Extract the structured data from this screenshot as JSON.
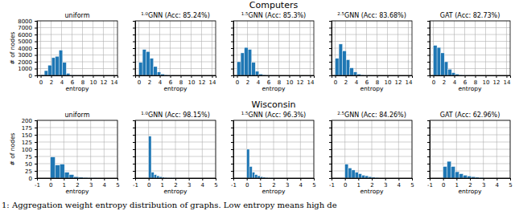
{
  "figure": {
    "row_titles": [
      "Computers",
      "Wisconsin"
    ],
    "caption": "1: Aggregation weight entropy distribution of graphs. Low entropy means high de"
  },
  "chart_data": [
    {
      "type": "histogram",
      "title": "uniform",
      "bins": [
        0,
        0.7,
        1.4,
        2.1,
        2.8,
        3.5,
        4.2,
        4.9,
        5.6,
        6.3,
        7.0
      ],
      "values": [
        100,
        700,
        1500,
        2600,
        2800,
        3700,
        1900,
        300,
        50,
        10
      ],
      "color": "#1f77b4",
      "xlim": [
        -0.7,
        14.7
      ],
      "xticks": [
        0,
        2,
        4,
        6,
        8,
        10,
        12,
        14
      ],
      "ylim": [
        0,
        8000
      ],
      "yticks": [
        0,
        1000,
        2000,
        3000,
        4000,
        5000,
        6000,
        7000,
        8000
      ],
      "xlabel": "entropy",
      "ylabel": "# of nodes",
      "grid": true
    },
    {
      "type": "histogram",
      "title": "1.0GNN (Acc: 85.24%)",
      "bins": [
        0,
        0.7,
        1.4,
        2.1,
        2.8,
        3.5,
        4.2,
        4.9,
        5.6,
        6.3,
        7.0
      ],
      "values": [
        1900,
        3800,
        3500,
        2500,
        1300,
        500,
        200,
        80,
        30,
        10
      ],
      "color": "#1f77b4",
      "xlim": [
        -0.7,
        14.7
      ],
      "xticks": [
        0,
        2,
        4,
        6,
        8,
        10,
        12,
        14
      ],
      "ylim": [
        0,
        8000
      ],
      "yticks": [
        0,
        1000,
        2000,
        3000,
        4000,
        5000,
        6000,
        7000,
        8000
      ],
      "xlabel": "entropy",
      "grid": true,
      "tick_labels": "x"
    },
    {
      "type": "histogram",
      "title": "1.5GNN (Acc: 85.3%)",
      "bins": [
        0,
        0.7,
        1.4,
        2.1,
        2.8,
        3.5,
        4.2,
        4.9,
        5.6,
        6.3,
        7.0
      ],
      "values": [
        2000,
        3300,
        4100,
        3800,
        1900,
        600,
        200,
        80,
        30,
        10
      ],
      "color": "#1f77b4",
      "xlim": [
        -0.7,
        14.7
      ],
      "xticks": [
        0,
        2,
        4,
        6,
        8,
        10,
        12,
        14
      ],
      "ylim": [
        0,
        8000
      ],
      "yticks": [
        0,
        1000,
        2000,
        3000,
        4000,
        5000,
        6000,
        7000,
        8000
      ],
      "xlabel": "entropy",
      "grid": true,
      "tick_labels": "x"
    },
    {
      "type": "histogram",
      "title": "2.5GNN (Acc: 83.68%)",
      "bins": [
        0,
        0.7,
        1.4,
        2.1,
        2.8,
        3.5,
        4.2,
        4.9,
        5.6,
        6.3,
        7.0
      ],
      "values": [
        2500,
        4600,
        3600,
        2300,
        1100,
        500,
        200,
        80,
        30,
        10
      ],
      "color": "#1f77b4",
      "xlim": [
        -0.7,
        14.7
      ],
      "xticks": [
        0,
        2,
        4,
        6,
        8,
        10,
        12,
        14
      ],
      "ylim": [
        0,
        8000
      ],
      "yticks": [
        0,
        1000,
        2000,
        3000,
        4000,
        5000,
        6000,
        7000,
        8000
      ],
      "xlabel": "entropy",
      "grid": true,
      "tick_labels": "x"
    },
    {
      "type": "histogram",
      "title": "GAT (Acc: 82.73%)",
      "bins": [
        0,
        0.7,
        1.4,
        2.1,
        2.8,
        3.5,
        4.2,
        4.9,
        5.6,
        6.3,
        7.0
      ],
      "values": [
        4400,
        4100,
        3300,
        2000,
        900,
        400,
        200,
        80,
        30,
        10
      ],
      "color": "#1f77b4",
      "xlim": [
        -0.7,
        14.7
      ],
      "xticks": [
        0,
        2,
        4,
        6,
        8,
        10,
        12,
        14
      ],
      "ylim": [
        0,
        8000
      ],
      "yticks": [
        0,
        1000,
        2000,
        3000,
        4000,
        5000,
        6000,
        7000,
        8000
      ],
      "xlabel": "entropy",
      "grid": true,
      "tick_labels": "x"
    },
    {
      "type": "histogram",
      "title": "uniform",
      "bins": [
        0,
        0.35,
        0.7,
        1.05,
        1.4,
        1.75,
        2.1,
        2.45,
        2.8,
        3.15,
        3.5
      ],
      "values": [
        73,
        45,
        48,
        20,
        12,
        5,
        3,
        2,
        1,
        1
      ],
      "color": "#1f77b4",
      "xlim": [
        -1,
        5
      ],
      "xticks": [
        -1,
        0,
        1,
        2,
        3,
        4,
        5
      ],
      "ylim": [
        0,
        200
      ],
      "yticks": [
        0,
        25,
        50,
        75,
        100,
        125,
        150,
        175,
        200
      ],
      "xlabel": "entropy",
      "ylabel": "# of nodes",
      "grid": true
    },
    {
      "type": "histogram",
      "title": "1.0GNN (Acc: 98.15%)",
      "bins": [
        0,
        0.2,
        0.4,
        0.6,
        0.8,
        1.0,
        1.2,
        1.4,
        1.6,
        1.8,
        2.0
      ],
      "values": [
        145,
        20,
        12,
        8,
        5,
        3,
        2,
        1,
        1,
        1
      ],
      "color": "#1f77b4",
      "xlim": [
        -1,
        5
      ],
      "xticks": [
        -1,
        0,
        1,
        2,
        3,
        4,
        5
      ],
      "ylim": [
        0,
        200
      ],
      "yticks": [
        0,
        25,
        50,
        75,
        100,
        125,
        150,
        175,
        200
      ],
      "xlabel": "entropy",
      "grid": true,
      "tick_labels": "x"
    },
    {
      "type": "histogram",
      "title": "1.5GNN (Acc: 96.3%)",
      "bins": [
        0,
        0.2,
        0.4,
        0.6,
        0.8,
        1.0,
        1.2,
        1.4,
        1.6,
        1.8,
        2.0
      ],
      "values": [
        100,
        40,
        20,
        12,
        8,
        5,
        3,
        2,
        1,
        1
      ],
      "color": "#1f77b4",
      "xlim": [
        -1,
        5
      ],
      "xticks": [
        -1,
        0,
        1,
        2,
        3,
        4,
        5
      ],
      "ylim": [
        0,
        200
      ],
      "yticks": [
        0,
        25,
        50,
        75,
        100,
        125,
        150,
        175,
        200
      ],
      "xlabel": "entropy",
      "grid": true,
      "tick_labels": "x"
    },
    {
      "type": "histogram",
      "title": "2.5GNN (Acc: 84.26%)",
      "bins": [
        0,
        0.25,
        0.5,
        0.75,
        1.0,
        1.25,
        1.5,
        1.75,
        2.0,
        2.25,
        2.5
      ],
      "values": [
        48,
        35,
        28,
        20,
        15,
        10,
        8,
        5,
        3,
        2
      ],
      "color": "#1f77b4",
      "xlim": [
        -1,
        5
      ],
      "xticks": [
        -1,
        0,
        1,
        2,
        3,
        4,
        5
      ],
      "ylim": [
        0,
        200
      ],
      "yticks": [
        0,
        25,
        50,
        75,
        100,
        125,
        150,
        175,
        200
      ],
      "xlabel": "entropy",
      "grid": true,
      "tick_labels": "x"
    },
    {
      "type": "histogram",
      "title": "GAT (Acc: 62.96%)",
      "bins": [
        0,
        0.3,
        0.6,
        0.9,
        1.2,
        1.5,
        1.8,
        2.1,
        2.4,
        2.7,
        3.0
      ],
      "values": [
        40,
        58,
        40,
        22,
        15,
        10,
        7,
        5,
        3,
        2
      ],
      "color": "#1f77b4",
      "xlim": [
        -1,
        5
      ],
      "xticks": [
        -1,
        0,
        1,
        2,
        3,
        4,
        5
      ],
      "ylim": [
        0,
        200
      ],
      "yticks": [
        0,
        25,
        50,
        75,
        100,
        125,
        150,
        175,
        200
      ],
      "xlabel": "entropy",
      "grid": true,
      "tick_labels": "x"
    }
  ]
}
